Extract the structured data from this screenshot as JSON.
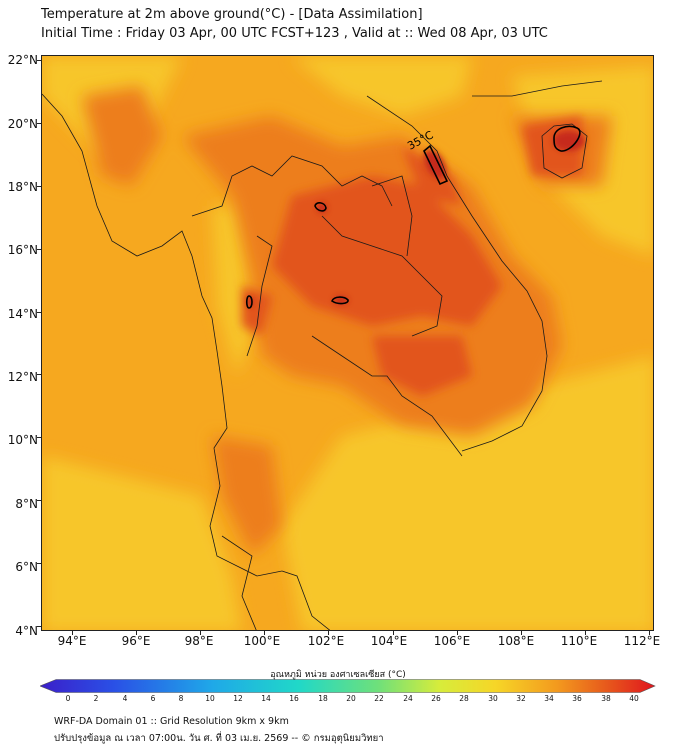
{
  "header": {
    "title_line1": "Temperature at 2m above ground(°C) - [Data Assimilation]",
    "title_line2": "Initial Time : Friday 03 Apr, 00 UTC FCST+123 , Valid at :: Wed 08 Apr, 03 UTC"
  },
  "map": {
    "lat_labels": [
      "22°N",
      "20°N",
      "18°N",
      "16°N",
      "14°N",
      "12°N",
      "10°N",
      "8°N",
      "6°N",
      "4°N"
    ],
    "lon_labels": [
      "94°E",
      "96°E",
      "98°E",
      "100°E",
      "102°E",
      "104°E",
      "106°E",
      "108°E",
      "110°E",
      "112°E"
    ],
    "contour_label": "35°C",
    "colors": {
      "background": "#f6a81f",
      "cool": "#f7c62a",
      "warm": "#ed7e1c",
      "hot": "#e2541a",
      "hottest": "#c62a1e",
      "borders": "#1a1a1a"
    }
  },
  "colorbar": {
    "title": "อุณหภูมิ หน่วย องศาเซลเซียส (°C)",
    "tick_labels": [
      "0",
      "2",
      "4",
      "6",
      "8",
      "10",
      "12",
      "14",
      "16",
      "18",
      "20",
      "22",
      "24",
      "26",
      "28",
      "30",
      "32",
      "34",
      "36",
      "38",
      "40"
    ],
    "min": 0,
    "max": 40
  },
  "footer": {
    "line1": "WRF-DA Domain 01 :: Grid Resolution 9km x 9km",
    "line2": "ปรับปรุงข้อมูล ณ เวลา 07:00น. วัน ศ. ที่ 03 เม.ย. 2569 -- © กรมอุตุนิยมวิทยา"
  }
}
